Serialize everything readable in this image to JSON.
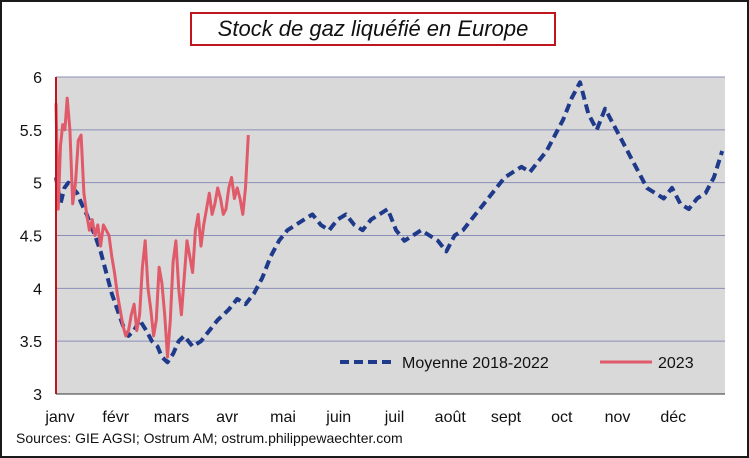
{
  "chart_data": {
    "type": "line",
    "title": "Stock de gaz liquéfié en Europe",
    "source": "Sources: GIE AGSI; Ostrum AM; ostrum.philippewaechter.com",
    "xlabel": "",
    "ylabel": "",
    "ylim": [
      3,
      6
    ],
    "yticks": [
      "3",
      "3.5",
      "4",
      "4.5",
      "5",
      "5.5",
      "6"
    ],
    "categories": [
      "janv",
      "févr",
      "mars",
      "avr",
      "mai",
      "juin",
      "juil",
      "août",
      "sept",
      "oct",
      "nov",
      "déc"
    ],
    "grid": true,
    "legend_position": "bottom-right",
    "colors": {
      "plot_bg": "#d9d9d9",
      "frame": "#1a1a1a",
      "title_border": "#c0141e",
      "axis_left": "#c0141e"
    },
    "series": [
      {
        "name": "Moyenne 2018-2022",
        "style": "dashed",
        "color": "#1f3a8a",
        "x": [
          0,
          0.08,
          0.15,
          0.22,
          0.3,
          0.38,
          0.46,
          0.55,
          0.62,
          0.7,
          0.8,
          0.9,
          1.0,
          1.1,
          1.2,
          1.3,
          1.4,
          1.5,
          1.62,
          1.72,
          1.82,
          1.9,
          2.0,
          2.1,
          2.2,
          2.3,
          2.45,
          2.6,
          2.75,
          2.9,
          3.0,
          3.1,
          3.25,
          3.4,
          3.55,
          3.7,
          3.85,
          4.0,
          4.15,
          4.3,
          4.45,
          4.6,
          4.75,
          4.9,
          5.05,
          5.2,
          5.35,
          5.5,
          5.65,
          5.8,
          5.95,
          6.1,
          6.25,
          6.4,
          6.55,
          6.7,
          6.85,
          7.0,
          7.15,
          7.3,
          7.45,
          7.6,
          7.75,
          7.9,
          8.05,
          8.2,
          8.35,
          8.5,
          8.65,
          8.8,
          8.95,
          9.1,
          9.25,
          9.4,
          9.55,
          9.7,
          9.85,
          10.0,
          10.15,
          10.3,
          10.45,
          10.6,
          10.75,
          10.9,
          11.05,
          11.2,
          11.35,
          11.5,
          11.65,
          11.8,
          11.95
        ],
        "values": [
          5.05,
          4.8,
          4.95,
          5.0,
          4.95,
          4.9,
          4.8,
          4.7,
          4.6,
          4.5,
          4.35,
          4.15,
          3.95,
          3.8,
          3.65,
          3.55,
          3.6,
          3.7,
          3.6,
          3.5,
          3.45,
          3.35,
          3.3,
          3.38,
          3.5,
          3.55,
          3.45,
          3.5,
          3.6,
          3.7,
          3.75,
          3.8,
          3.9,
          3.85,
          3.95,
          4.1,
          4.3,
          4.45,
          4.55,
          4.6,
          4.65,
          4.7,
          4.6,
          4.55,
          4.65,
          4.7,
          4.6,
          4.55,
          4.65,
          4.7,
          4.75,
          4.55,
          4.45,
          4.5,
          4.55,
          4.5,
          4.45,
          4.35,
          4.5,
          4.55,
          4.65,
          4.75,
          4.85,
          4.95,
          5.05,
          5.1,
          5.15,
          5.1,
          5.2,
          5.3,
          5.45,
          5.6,
          5.8,
          5.95,
          5.65,
          5.5,
          5.7,
          5.55,
          5.4,
          5.25,
          5.1,
          4.95,
          4.9,
          4.85,
          4.95,
          4.8,
          4.75,
          4.85,
          4.9,
          5.05,
          5.3
        ]
      },
      {
        "name": "2023",
        "style": "solid",
        "color": "#e05a6a",
        "x": [
          0,
          0.04,
          0.08,
          0.12,
          0.16,
          0.2,
          0.25,
          0.3,
          0.35,
          0.4,
          0.45,
          0.5,
          0.55,
          0.6,
          0.65,
          0.7,
          0.75,
          0.8,
          0.85,
          0.9,
          0.95,
          1.0,
          1.05,
          1.1,
          1.15,
          1.2,
          1.25,
          1.3,
          1.35,
          1.4,
          1.45,
          1.5,
          1.55,
          1.6,
          1.65,
          1.7,
          1.75,
          1.8,
          1.85,
          1.9,
          1.95,
          2.0,
          2.05,
          2.1,
          2.15,
          2.2,
          2.25,
          2.3,
          2.35,
          2.4,
          2.45,
          2.5,
          2.55,
          2.6,
          2.65,
          2.7,
          2.75,
          2.8,
          2.85,
          2.9,
          2.95,
          3.0,
          3.05,
          3.1,
          3.15,
          3.2,
          3.25,
          3.3,
          3.35,
          3.4,
          3.45
        ],
        "values": [
          5.75,
          4.75,
          5.35,
          5.55,
          5.5,
          5.8,
          5.5,
          4.8,
          5.0,
          5.4,
          5.45,
          4.9,
          4.7,
          4.55,
          4.65,
          4.5,
          4.6,
          4.4,
          4.6,
          4.55,
          4.5,
          4.3,
          4.15,
          3.95,
          3.8,
          3.65,
          3.55,
          3.6,
          3.75,
          3.85,
          3.6,
          3.75,
          4.2,
          4.45,
          4.0,
          3.8,
          3.55,
          3.7,
          4.2,
          4.05,
          3.75,
          3.35,
          3.7,
          4.25,
          4.45,
          4.0,
          3.75,
          4.1,
          4.45,
          4.3,
          4.15,
          4.55,
          4.7,
          4.4,
          4.6,
          4.75,
          4.9,
          4.7,
          4.8,
          4.95,
          4.85,
          4.7,
          4.75,
          4.95,
          5.05,
          4.85,
          4.95,
          4.85,
          4.7,
          4.95,
          5.45
        ]
      }
    ]
  }
}
